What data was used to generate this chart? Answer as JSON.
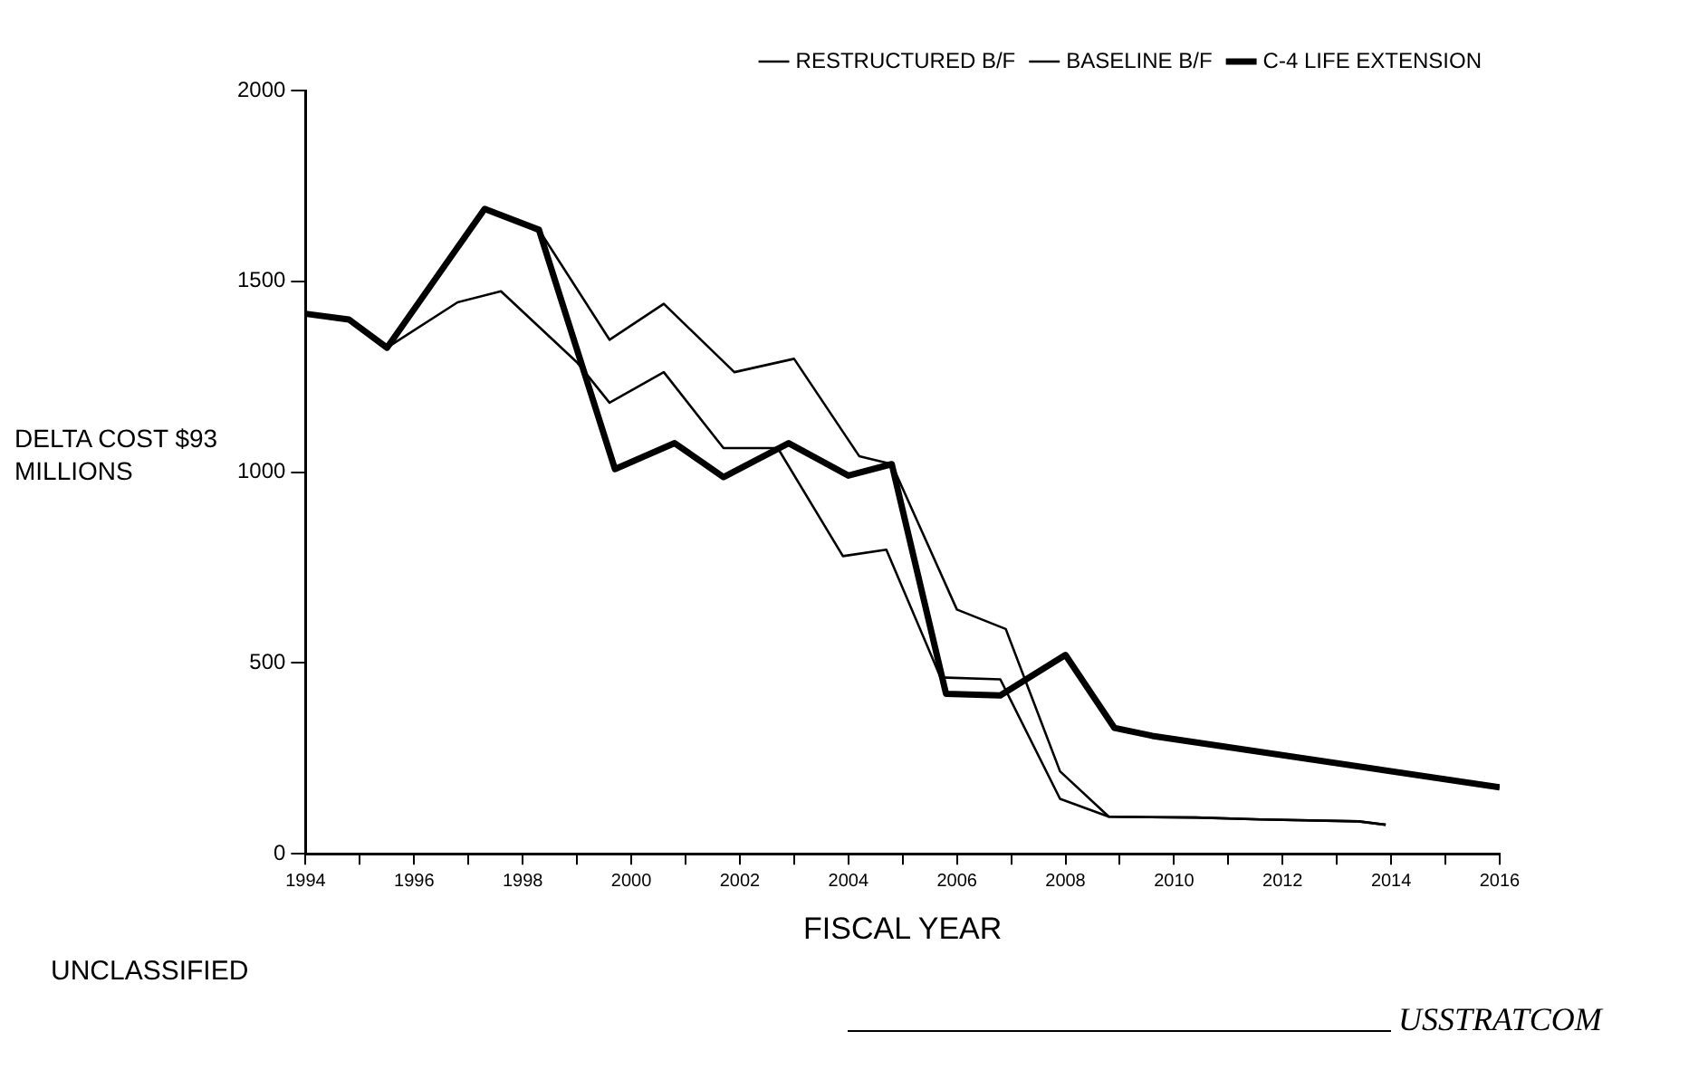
{
  "chart_data": {
    "type": "line",
    "xlabel": "FISCAL YEAR",
    "ylabel": "DELTA COST $93 MILLIONS",
    "legend": "top right",
    "xlim": [
      1994,
      2016
    ],
    "xticks": [
      1994,
      {
        "value": 1995,
        "label": null
      },
      1996,
      {
        "value": 1997,
        "label": null
      },
      1998,
      {
        "value": 1999,
        "label": null
      },
      2000,
      {
        "value": 2001,
        "label": null
      },
      2002,
      {
        "value": 2003,
        "label": null
      },
      2004,
      {
        "value": 2005,
        "label": null
      },
      2006,
      {
        "value": 2007,
        "label": null
      },
      2008,
      {
        "value": 2009,
        "label": null
      },
      2010,
      {
        "value": 2011,
        "label": null
      },
      2012,
      {
        "value": 2013,
        "label": null
      },
      2014,
      {
        "value": 2015,
        "label": null
      },
      2016
    ],
    "ylim": [
      0,
      2000
    ],
    "yticks": [
      0,
      500,
      1000,
      1500,
      2000
    ],
    "series": [
      {
        "name": "RESTRUCTURED B/F",
        "color": "#000000",
        "x": [
          1994,
          1994.8,
          1995.5,
          1997.3,
          1998.3,
          1999.6,
          2000.6,
          2001.9,
          2003.0,
          2004.2,
          2004.8,
          2006.0,
          2006.9,
          2007.9,
          2008.8,
          2010.4,
          2011.6,
          2013.4,
          2013.9
        ],
        "values": [
          1415,
          1400,
          1326,
          1690,
          1635,
          1347,
          1441,
          1262,
          1297,
          1042,
          1021,
          640,
          589,
          216,
          97,
          95,
          90,
          85,
          76
        ]
      },
      {
        "name": "BASELINE B/F",
        "color": "#000000",
        "x": [
          1994,
          1994.8,
          1995.5,
          1996.8,
          1997.6,
          1999.0,
          1999.6,
          2000.6,
          2001.7,
          2002.7,
          2003.9,
          2004.7,
          2005.7,
          2006.8,
          2007.9,
          2008.8,
          2010.4,
          2011.6,
          2013.4,
          2013.9
        ],
        "values": [
          1415,
          1400,
          1326,
          1445,
          1474,
          1288,
          1182,
          1262,
          1063,
          1063,
          780,
          797,
          462,
          457,
          144,
          97,
          95,
          90,
          85,
          76
        ]
      },
      {
        "name": "C-4 LIFE EXTENSION",
        "color": "#000000",
        "x": [
          1994,
          1994.8,
          1995.5,
          1997.3,
          1998.3,
          1999.7,
          2000.8,
          2001.7,
          2002.9,
          2004.0,
          2004.8,
          2005.8,
          2006.8,
          2008.0,
          2008.9,
          2009.6,
          2016
        ],
        "values": [
          1415,
          1400,
          1326,
          1690,
          1635,
          1008,
          1076,
          987,
          1076,
          991,
          1021,
          419,
          415,
          521,
          330,
          309,
          174
        ]
      }
    ],
    "annotations": [
      "UNCLASSIFIED",
      "USSTRATCOM"
    ]
  }
}
